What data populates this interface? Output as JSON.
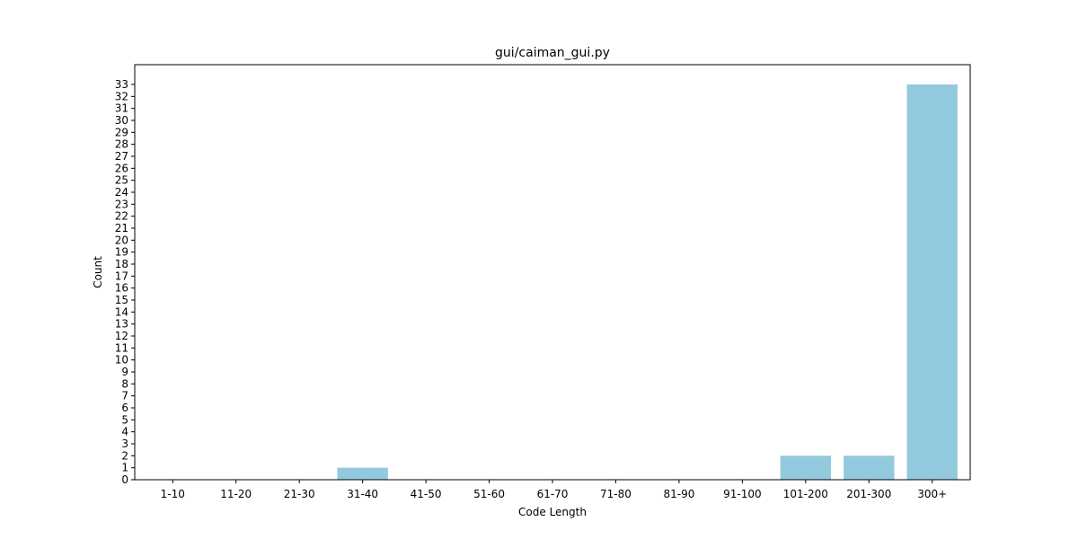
{
  "chart_data": {
    "type": "bar",
    "title": "gui/caiman_gui.py",
    "xlabel": "Code Length",
    "ylabel": "Count",
    "categories": [
      "1-10",
      "11-20",
      "21-30",
      "31-40",
      "41-50",
      "51-60",
      "61-70",
      "71-80",
      "81-90",
      "91-100",
      "101-200",
      "201-300",
      "300+"
    ],
    "values": [
      0,
      0,
      0,
      1,
      0,
      0,
      0,
      0,
      0,
      0,
      2,
      2,
      33
    ],
    "ylim": [
      0,
      34.65
    ],
    "yticks": [
      0,
      1,
      2,
      3,
      4,
      5,
      6,
      7,
      8,
      9,
      10,
      11,
      12,
      13,
      14,
      15,
      16,
      17,
      18,
      19,
      20,
      21,
      22,
      23,
      24,
      25,
      26,
      27,
      28,
      29,
      30,
      31,
      32,
      33
    ],
    "bar_color": "#92c9dd",
    "grid": false,
    "legend": "none"
  }
}
